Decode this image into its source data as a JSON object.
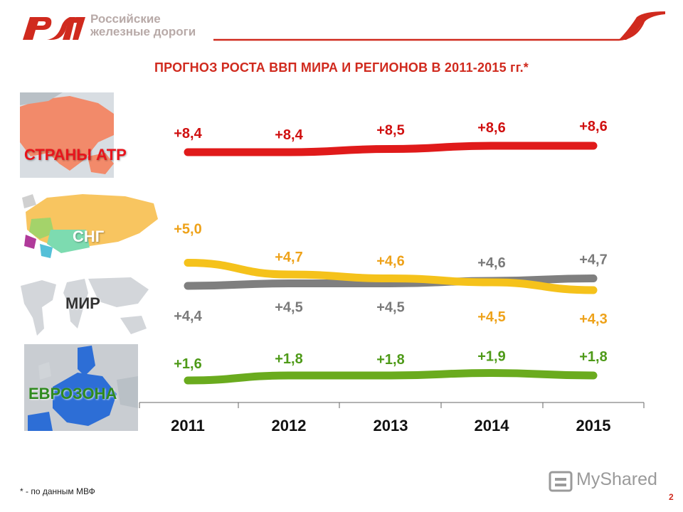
{
  "brand": {
    "name_line1": "Российские",
    "name_line2": "железные дороги",
    "accent_color": "#d02a1e"
  },
  "title": "ПРОГНОЗ РОСТА ВВП МИРА И РЕГИОНОВ В 2011-2015 гг.*",
  "regions": {
    "apac": "СТРАНЫ АТР",
    "cis": "СНГ",
    "world": "МИР",
    "eurozone": "ЕВРОЗОНА"
  },
  "chart_data": {
    "type": "line",
    "title": "ПРОГНОЗ РОСТА ВВП МИРА И РЕГИОНОВ В 2011-2015 гг.*",
    "xlabel": "",
    "ylabel": "",
    "categories": [
      "2011",
      "2012",
      "2013",
      "2014",
      "2015"
    ],
    "series": [
      {
        "name": "СТРАНЫ АТР",
        "color": "#e01a1a",
        "labelColor": "#d01010",
        "values": [
          8.4,
          8.4,
          8.5,
          8.6,
          8.6
        ],
        "labels": [
          "+8,4",
          "+8,4",
          "+8,5",
          "+8,6",
          "+8,6"
        ]
      },
      {
        "name": "СНГ",
        "color": "#f5c21b",
        "labelColor": "#eea21a",
        "values": [
          5.0,
          4.7,
          4.6,
          4.5,
          4.3
        ],
        "labels": [
          "+5,0",
          "+4,7",
          "+4,6",
          "+4,5",
          "+4,3"
        ]
      },
      {
        "name": "МИР",
        "color": "#7f7f7f",
        "labelColor": "#7a7a7a",
        "values": [
          4.4,
          4.5,
          4.5,
          4.6,
          4.7
        ],
        "labels": [
          "+4,4",
          "+4,5",
          "+4,5",
          "+4,6",
          "+4,7"
        ]
      },
      {
        "name": "ЕВРОЗОНА",
        "color": "#6aab1e",
        "labelColor": "#4e9a18",
        "values": [
          1.6,
          1.8,
          1.8,
          1.9,
          1.8
        ],
        "labels": [
          "+1,6",
          "+1,8",
          "+1,8",
          "+1,9",
          "+1,8"
        ]
      }
    ]
  },
  "footnote": "* - по данным МВФ",
  "page_number": "2",
  "watermark": "MyShared"
}
